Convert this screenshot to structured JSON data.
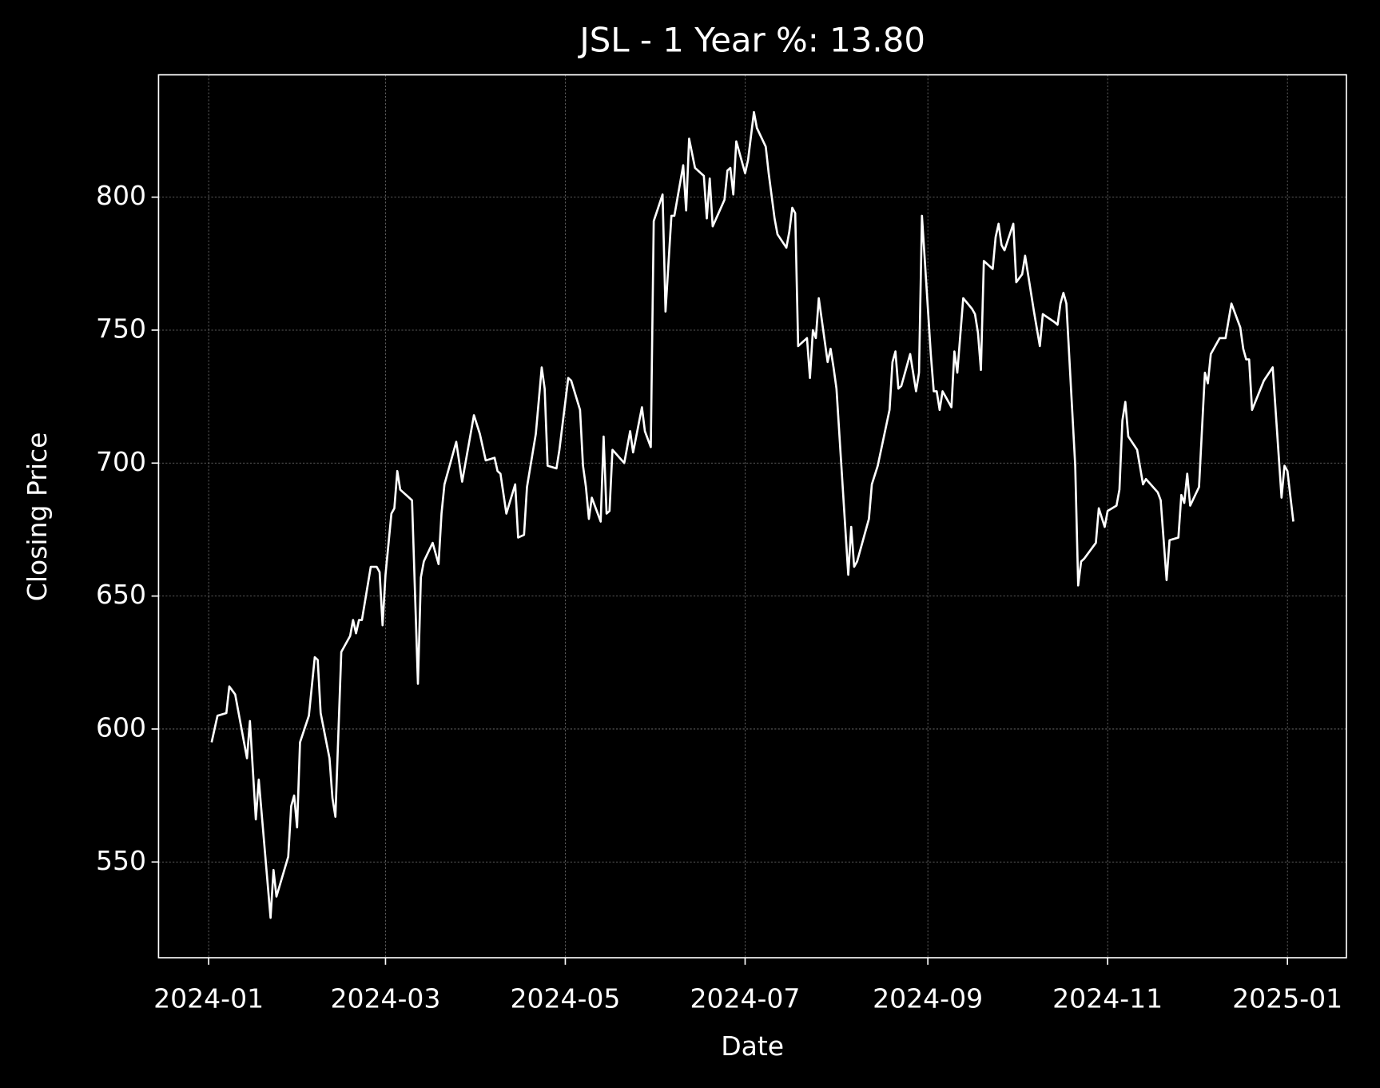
{
  "chart_data": {
    "type": "line",
    "title": "JSL - 1 Year %: 13.80",
    "x_label": "Date",
    "y_label": "Closing Price",
    "x": [
      "2024-01-02",
      "2024-01-04",
      "2024-01-07",
      "2024-01-08",
      "2024-01-10",
      "2024-01-14",
      "2024-01-15",
      "2024-01-17",
      "2024-01-18",
      "2024-01-22",
      "2024-01-23",
      "2024-01-24",
      "2024-01-28",
      "2024-01-29",
      "2024-01-30",
      "2024-01-31",
      "2024-02-01",
      "2024-02-04",
      "2024-02-06",
      "2024-02-07",
      "2024-02-08",
      "2024-02-11",
      "2024-02-12",
      "2024-02-13",
      "2024-02-15",
      "2024-02-18",
      "2024-02-19",
      "2024-02-20",
      "2024-02-21",
      "2024-02-22",
      "2024-02-25",
      "2024-02-27",
      "2024-02-28",
      "2024-02-29",
      "2024-03-01",
      "2024-03-03",
      "2024-03-04",
      "2024-03-05",
      "2024-03-06",
      "2024-03-10",
      "2024-03-12",
      "2024-03-13",
      "2024-03-14",
      "2024-03-17",
      "2024-03-19",
      "2024-03-20",
      "2024-03-21",
      "2024-03-25",
      "2024-03-27",
      "2024-03-31",
      "2024-04-02",
      "2024-04-04",
      "2024-04-07",
      "2024-04-08",
      "2024-04-09",
      "2024-04-11",
      "2024-04-14",
      "2024-04-15",
      "2024-04-17",
      "2024-04-18",
      "2024-04-21",
      "2024-04-23",
      "2024-04-24",
      "2024-04-25",
      "2024-04-28",
      "2024-04-29",
      "2024-05-02",
      "2024-05-03",
      "2024-05-06",
      "2024-05-07",
      "2024-05-08",
      "2024-05-09",
      "2024-05-10",
      "2024-05-13",
      "2024-05-14",
      "2024-05-15",
      "2024-05-16",
      "2024-05-17",
      "2024-05-21",
      "2024-05-23",
      "2024-05-24",
      "2024-05-27",
      "2024-05-28",
      "2024-05-30",
      "2024-05-31",
      "2024-06-03",
      "2024-06-04",
      "2024-06-06",
      "2024-06-07",
      "2024-06-10",
      "2024-06-11",
      "2024-06-12",
      "2024-06-14",
      "2024-06-17",
      "2024-06-18",
      "2024-06-19",
      "2024-06-20",
      "2024-06-24",
      "2024-06-25",
      "2024-06-26",
      "2024-06-27",
      "2024-06-28",
      "2024-07-01",
      "2024-07-02",
      "2024-07-04",
      "2024-07-05",
      "2024-07-08",
      "2024-07-09",
      "2024-07-11",
      "2024-07-12",
      "2024-07-15",
      "2024-07-16",
      "2024-07-17",
      "2024-07-18",
      "2024-07-19",
      "2024-07-22",
      "2024-07-23",
      "2024-07-24",
      "2024-07-25",
      "2024-07-26",
      "2024-07-29",
      "2024-07-30",
      "2024-07-31",
      "2024-08-01",
      "2024-08-05",
      "2024-08-06",
      "2024-08-07",
      "2024-08-08",
      "2024-08-12",
      "2024-08-13",
      "2024-08-15",
      "2024-08-19",
      "2024-08-20",
      "2024-08-21",
      "2024-08-22",
      "2024-08-23",
      "2024-08-26",
      "2024-08-28",
      "2024-08-29",
      "2024-08-30",
      "2024-09-02",
      "2024-09-03",
      "2024-09-04",
      "2024-09-05",
      "2024-09-06",
      "2024-09-09",
      "2024-09-10",
      "2024-09-11",
      "2024-09-13",
      "2024-09-16",
      "2024-09-17",
      "2024-09-18",
      "2024-09-19",
      "2024-09-20",
      "2024-09-23",
      "2024-09-24",
      "2024-09-25",
      "2024-09-26",
      "2024-09-27",
      "2024-09-30",
      "2024-10-01",
      "2024-10-03",
      "2024-10-04",
      "2024-10-07",
      "2024-10-09",
      "2024-10-10",
      "2024-10-14",
      "2024-10-15",
      "2024-10-16",
      "2024-10-17",
      "2024-10-18",
      "2024-10-21",
      "2024-10-22",
      "2024-10-23",
      "2024-10-24",
      "2024-10-28",
      "2024-10-29",
      "2024-10-31",
      "2024-11-01",
      "2024-11-04",
      "2024-11-05",
      "2024-11-06",
      "2024-11-07",
      "2024-11-08",
      "2024-11-11",
      "2024-11-13",
      "2024-11-14",
      "2024-11-18",
      "2024-11-19",
      "2024-11-21",
      "2024-11-22",
      "2024-11-25",
      "2024-11-26",
      "2024-11-27",
      "2024-11-28",
      "2024-11-29",
      "2024-12-02",
      "2024-12-04",
      "2024-12-05",
      "2024-12-06",
      "2024-12-09",
      "2024-12-11",
      "2024-12-13",
      "2024-12-16",
      "2024-12-17",
      "2024-12-18",
      "2024-12-19",
      "2024-12-20",
      "2024-12-24",
      "2024-12-27",
      "2024-12-30",
      "2024-12-31",
      "2025-01-01",
      "2025-01-03"
    ],
    "series": [
      {
        "name": "JSL",
        "color": "#ffffff",
        "values": [
          595,
          605,
          606,
          616,
          613,
          589,
          603,
          566,
          581,
          529,
          547,
          537,
          552,
          571,
          575,
          563,
          595,
          605,
          627,
          626,
          606,
          589,
          574,
          567,
          629,
          635,
          641,
          636,
          641,
          641,
          661,
          661,
          659,
          639,
          658,
          681,
          683,
          697,
          690,
          686,
          617,
          657,
          663,
          670,
          662,
          681,
          692,
          708,
          693,
          718,
          711,
          701,
          702,
          697,
          696,
          681,
          692,
          672,
          673,
          691,
          711,
          736,
          728,
          699,
          698,
          705,
          732,
          731,
          720,
          699,
          691,
          679,
          687,
          678,
          710,
          681,
          682,
          705,
          700,
          712,
          704,
          721,
          712,
          706,
          791,
          801,
          757,
          793,
          793,
          812,
          795,
          822,
          811,
          808,
          792,
          807,
          789,
          799,
          810,
          811,
          801,
          821,
          809,
          814,
          832,
          826,
          819,
          809,
          792,
          786,
          781,
          787,
          796,
          794,
          744,
          747,
          732,
          750,
          747,
          762,
          738,
          743,
          736,
          728,
          658,
          676,
          661,
          663,
          679,
          692,
          699,
          720,
          738,
          742,
          728,
          729,
          741,
          727,
          734,
          793,
          741,
          727,
          727,
          720,
          727,
          721,
          742,
          734,
          762,
          758,
          756,
          749,
          735,
          776,
          773,
          785,
          790,
          782,
          780,
          790,
          768,
          771,
          778,
          757,
          744,
          756,
          753,
          752,
          760,
          764,
          760,
          699,
          654,
          663,
          664,
          670,
          683,
          676,
          682,
          684,
          690,
          716,
          723,
          710,
          705,
          692,
          694,
          689,
          686,
          656,
          671,
          672,
          688,
          685,
          696,
          684,
          691,
          734,
          730,
          741,
          747,
          747,
          760,
          751,
          743,
          739,
          739,
          720,
          731,
          736,
          687,
          699,
          697,
          678
        ]
      }
    ],
    "xlim": [
      "2023-12-15",
      "2025-01-21"
    ],
    "xticks": [
      {
        "value": "2024-01-01",
        "label": "2024-01"
      },
      {
        "value": "2024-03-01",
        "label": "2024-03"
      },
      {
        "value": "2024-05-01",
        "label": "2024-05"
      },
      {
        "value": "2024-07-01",
        "label": "2024-07"
      },
      {
        "value": "2024-09-01",
        "label": "2024-09"
      },
      {
        "value": "2024-11-01",
        "label": "2024-11"
      },
      {
        "value": "2025-01-01",
        "label": "2025-01"
      }
    ],
    "ylim": [
      514,
      846
    ],
    "yticks": [
      550,
      600,
      650,
      700,
      750,
      800
    ],
    "grid": true
  }
}
